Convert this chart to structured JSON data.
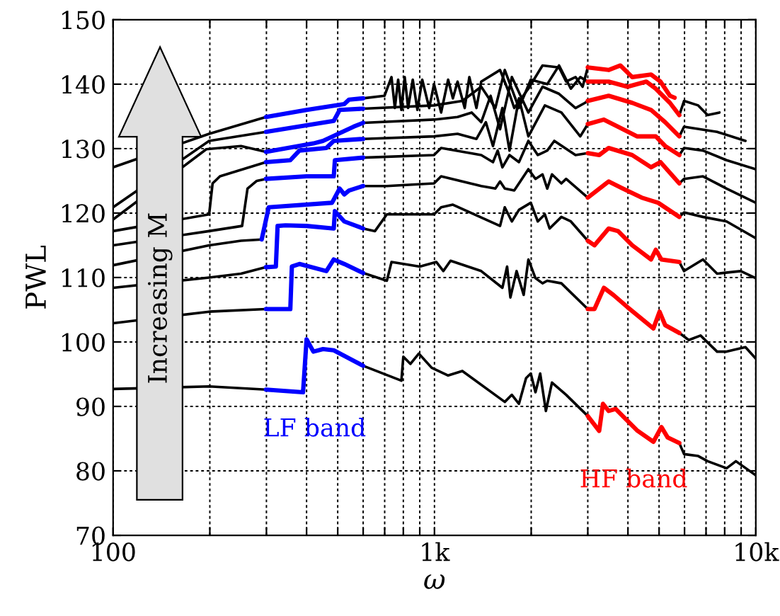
{
  "chart_data": {
    "type": "line",
    "xlabel": "ω",
    "ylabel": "PWL",
    "log": "x",
    "grid": true,
    "xlim": [
      100,
      10000
    ],
    "ylim": [
      70,
      150
    ],
    "xticks": [
      {
        "value": 100,
        "label": "100"
      },
      {
        "value": 200,
        "label": null
      },
      {
        "value": 300,
        "label": null
      },
      {
        "value": 400,
        "label": null
      },
      {
        "value": 500,
        "label": null
      },
      {
        "value": 600,
        "label": null
      },
      {
        "value": 700,
        "label": null
      },
      {
        "value": 800,
        "label": null
      },
      {
        "value": 900,
        "label": null
      },
      {
        "value": 1000,
        "label": "1k"
      },
      {
        "value": 2000,
        "label": null
      },
      {
        "value": 3000,
        "label": null
      },
      {
        "value": 4000,
        "label": null
      },
      {
        "value": 5000,
        "label": null
      },
      {
        "value": 6000,
        "label": null
      },
      {
        "value": 7000,
        "label": null
      },
      {
        "value": 8000,
        "label": null
      },
      {
        "value": 9000,
        "label": null
      },
      {
        "value": 10000,
        "label": "10k"
      }
    ],
    "yticks": [
      70,
      80,
      90,
      100,
      110,
      120,
      130,
      140,
      150
    ],
    "annotations": [
      "Increasing M"
    ],
    "series": [
      {
        "color": "#000000",
        "x": [
          100,
          199,
          299,
          450,
          600,
          789,
          800,
          842,
          894,
          980,
          1103,
          1221,
          1655,
          1741,
          1832,
          1928,
          1994,
          2062,
          2133,
          2222,
          2321,
          2569,
          3000,
          4000,
          5781,
          5980,
          6619,
          7080,
          8110,
          8670,
          10000
        ],
        "values": [
          92.7,
          93.1,
          92.6,
          null,
          96.3,
          94.0,
          97.7,
          96.6,
          98.2,
          96.0,
          94.8,
          95.5,
          90.7,
          91.8,
          90.4,
          94.4,
          95.1,
          92.2,
          95.1,
          89.3,
          93.7,
          91.8,
          88.5,
          null,
          84.3,
          82.6,
          82.3,
          81.5,
          80.4,
          81.5,
          79.3
        ]
      },
      {
        "name": "LF band",
        "color": "#0000ff",
        "x": [
          299,
          390,
          400,
          420,
          450,
          486,
          600
        ],
        "values": [
          92.6,
          92.2,
          100.4,
          98.5,
          98.9,
          98.7,
          96.3
        ]
      },
      {
        "name": "HF band",
        "color": "#ff0000",
        "x": [
          3000,
          3255,
          3344,
          3483,
          3664,
          3854,
          4266,
          4801,
          5084,
          5313,
          5781
        ],
        "values": [
          88.5,
          86.2,
          90.4,
          89.3,
          89.6,
          88.5,
          86.3,
          84.5,
          86.8,
          85.2,
          84.3
        ]
      },
      {
        "color": "#000000",
        "x": [
          100,
          199,
          299,
          450,
          600,
          711,
          735,
          900,
          1014,
          1066,
          1122,
          1398,
          1627,
          1683,
          1723,
          1801,
          1895,
          1960,
          2062,
          2169,
          2244,
          2483,
          3000,
          4000,
          5781,
          6186,
          6730,
          7577,
          8110,
          9284,
          10000
        ],
        "values": [
          102.9,
          104.7,
          105.1,
          null,
          110.7,
          109.5,
          112.4,
          111.7,
          112.4,
          111.0,
          112.6,
          111.0,
          108.4,
          111.7,
          106.9,
          111.0,
          107.3,
          112.8,
          109.9,
          109.1,
          109.5,
          109.1,
          105.1,
          null,
          101.4,
          100.3,
          101.0,
          98.5,
          98.5,
          99.2,
          97.4
        ]
      },
      {
        "color": "#0000ff",
        "x": [
          299,
          356,
          360,
          380,
          461,
          486,
          524,
          600
        ],
        "values": [
          105.1,
          105.1,
          111.7,
          112.1,
          111.0,
          112.8,
          112.1,
          110.7
        ]
      },
      {
        "color": "#ff0000",
        "x": [
          3000,
          3147,
          3367,
          3602,
          3987,
          4801,
          5016,
          5224,
          5781
        ],
        "values": [
          105.1,
          105.1,
          108.4,
          107.3,
          105.4,
          102.1,
          104.7,
          102.6,
          101.4
        ]
      },
      {
        "color": "#000000",
        "x": [
          100,
          199,
          250,
          299,
          450,
          600,
          653,
          711,
          997,
          1049,
          1141,
          1600,
          1655,
          1741,
          1832,
          1994,
          2097,
          2206,
          2282,
          2483,
          2657,
          3000,
          4000,
          5781,
          5980,
          6847,
          7577,
          8974,
          10000
        ],
        "values": [
          108.4,
          110.0,
          110.6,
          111.6,
          null,
          117.6,
          117.2,
          119.8,
          119.8,
          120.9,
          121.3,
          118.0,
          120.9,
          118.7,
          120.5,
          121.6,
          118.7,
          119.8,
          117.6,
          119.4,
          118.7,
          115.7,
          null,
          112.4,
          111.0,
          112.8,
          110.6,
          111.0,
          109.9
        ]
      },
      {
        "color": "#0000ff",
        "x": [
          299,
          321,
          325,
          344,
          400,
          486,
          490,
          524,
          600
        ],
        "values": [
          111.6,
          111.7,
          118.0,
          118.1,
          118.0,
          117.6,
          120.3,
          118.7,
          117.6
        ]
      },
      {
        "color": "#ff0000",
        "x": [
          3000,
          3147,
          3483,
          3727,
          4124,
          4721,
          4883,
          5084,
          5781
        ],
        "values": [
          115.7,
          115.0,
          117.6,
          117.2,
          115.0,
          112.8,
          114.3,
          112.8,
          112.4
        ]
      },
      {
        "color": "#000000",
        "x": [
          100,
          199,
          250,
          290,
          450,
          600,
          711,
          997,
          1049,
          1398,
          1547,
          1600,
          1655,
          1771,
          1960,
          2062,
          2169,
          2244,
          2321,
          2483,
          2569,
          3000,
          4000,
          5781,
          5980,
          6847,
          8110,
          10000
        ],
        "values": [
          111.9,
          115.0,
          115.7,
          115.9,
          null,
          124.2,
          124.2,
          124.6,
          125.7,
          124.2,
          123.8,
          124.9,
          123.8,
          123.5,
          126.8,
          125.3,
          126.0,
          123.8,
          126.0,
          124.6,
          125.3,
          122.4,
          null,
          119.4,
          120.1,
          119.4,
          118.7,
          116.1
        ]
      },
      {
        "color": "#0000ff",
        "x": [
          290,
          305,
          480,
          507,
          524,
          542,
          600
        ],
        "values": [
          115.9,
          120.9,
          121.6,
          123.8,
          122.9,
          123.5,
          124.2
        ]
      },
      {
        "color": "#ff0000",
        "x": [
          3000,
          3483,
          3854,
          4412,
          4966,
          5781
        ],
        "values": [
          122.4,
          124.9,
          123.8,
          122.4,
          121.6,
          119.4
        ]
      },
      {
        "color": "#000000",
        "x": [
          100,
          199,
          252,
          262,
          280,
          299,
          450,
          600,
          997,
          1049,
          1398,
          1521,
          1573,
          1627,
          1712,
          1832,
          1960,
          2097,
          2244,
          2360,
          2748,
          3000,
          4000,
          5781,
          5980,
          6847,
          8110,
          10000
        ],
        "values": [
          115.0,
          117.2,
          118.0,
          123.8,
          125.0,
          125.3,
          null,
          128.6,
          129.0,
          130.1,
          129.0,
          127.9,
          129.7,
          127.1,
          129.0,
          127.9,
          131.2,
          129.0,
          129.7,
          131.2,
          129.0,
          129.3,
          null,
          124.6,
          125.3,
          125.7,
          123.8,
          121.6
        ]
      },
      {
        "color": "#0000ff",
        "x": [
          299,
          400,
          486,
          490,
          600
        ],
        "values": [
          125.3,
          125.7,
          125.7,
          128.2,
          128.6
        ]
      },
      {
        "color": "#ff0000",
        "x": [
          3000,
          3255,
          3483,
          4124,
          4721,
          5050,
          5781
        ],
        "values": [
          129.3,
          129.0,
          130.1,
          129.0,
          127.1,
          127.9,
          124.6
        ]
      },
      {
        "color": "#000000",
        "x": [
          100,
          199,
          204,
          215,
          299,
          450,
          600,
          997,
          1180,
          1351,
          1445,
          1521,
          1627,
          1712,
          1832,
          1960,
          2206,
          2483,
          2843,
          3000,
          4000,
          5781,
          5980,
          6847,
          8110,
          10000
        ],
        "values": [
          117.2,
          119.8,
          124.6,
          125.7,
          127.9,
          null,
          131.5,
          131.9,
          132.3,
          131.5,
          134.1,
          130.4,
          136.3,
          129.7,
          137.8,
          131.9,
          136.7,
          135.6,
          131.9,
          133.8,
          null,
          129.0,
          130.1,
          129.7,
          128.2,
          126.8
        ]
      },
      {
        "color": "#0000ff",
        "x": [
          299,
          356,
          380,
          461,
          486,
          600
        ],
        "values": [
          127.9,
          128.2,
          129.7,
          130.1,
          131.2,
          131.5
        ]
      },
      {
        "color": "#ff0000",
        "x": [
          3000,
          3367,
          3727,
          4266,
          4883,
          5224,
          5781
        ],
        "values": [
          133.8,
          134.5,
          133.4,
          131.9,
          131.9,
          130.4,
          129.0
        ]
      },
      {
        "color": "#000000",
        "x": [
          100,
          195,
          250,
          299,
          450,
          600,
          997,
          1180,
          1306,
          1398,
          1495,
          1600,
          1741,
          1960,
          2169,
          2442,
          2748,
          2941,
          3000,
          4000,
          5781,
          5980,
          7577,
          9284
        ],
        "values": [
          119.0,
          129.9,
          130.4,
          129.5,
          null,
          134.0,
          134.5,
          134.9,
          135.6,
          134.1,
          138.2,
          133.0,
          141.1,
          135.6,
          139.6,
          138.5,
          136.3,
          137.1,
          137.4,
          null,
          131.9,
          133.4,
          132.6,
          131.2
        ]
      },
      {
        "color": "#0000ff",
        "x": [
          299,
          420,
          450,
          560,
          600
        ],
        "values": [
          129.5,
          130.8,
          131.2,
          133.4,
          134.0
        ]
      },
      {
        "color": "#ff0000",
        "x": [
          3000,
          3483,
          4124,
          4721,
          5224,
          5781
        ],
        "values": [
          137.4,
          138.2,
          137.1,
          136.0,
          134.1,
          131.9
        ]
      },
      {
        "color": "#000000",
        "x": [
          100,
          199,
          299,
          450,
          600,
          997,
          1221,
          1398,
          1547,
          1655,
          1832,
          1994,
          2244,
          2442,
          2657,
          2843,
          3000,
          4000,
          5781,
          5980,
          6619,
          7080,
          7707
        ],
        "values": [
          120.9,
          131.2,
          132.6,
          null,
          136.2,
          136.7,
          137.4,
          139.6,
          136.3,
          142.2,
          136.3,
          140.7,
          140.0,
          142.9,
          139.3,
          141.1,
          140.4,
          null,
          135.2,
          137.4,
          136.7,
          135.2,
          135.6
        ]
      },
      {
        "color": "#0000ff",
        "x": [
          299,
          486,
          507,
          600
        ],
        "values": [
          132.6,
          134.3,
          136.0,
          136.2
        ]
      },
      {
        "color": "#ff0000",
        "x": [
          3000,
          3483,
          3987,
          4563,
          4883,
          5404,
          5781
        ],
        "values": [
          140.4,
          140.4,
          139.6,
          140.4,
          139.3,
          137.1,
          135.2
        ]
      },
      {
        "color": "#000000",
        "x": [
          100,
          199,
          299,
          450,
          600,
          699,
          735,
          753,
          771,
          789,
          808,
          828,
          856,
          885,
          916,
          963,
          997,
          1049,
          1103,
          1141,
          1180,
          1242,
          1284,
          1351,
          1398,
          1600,
          1712,
          1771,
          1960,
          2169,
          2442,
          2569,
          2748,
          2891,
          3000
        ],
        "values": [
          127.1,
          132.3,
          134.9,
          null,
          137.8,
          138.2,
          141.1,
          136.3,
          140.7,
          136.0,
          141.1,
          136.3,
          140.7,
          136.0,
          140.7,
          136.3,
          140.0,
          135.6,
          140.7,
          137.8,
          140.4,
          136.3,
          141.1,
          136.3,
          140.4,
          142.2,
          138.5,
          136.3,
          139.3,
          142.9,
          142.6,
          140.4,
          141.1,
          139.6,
          142.6
        ]
      },
      {
        "color": "#0000ff",
        "x": [
          299,
          400,
          524,
          542,
          600
        ],
        "values": [
          134.9,
          136.0,
          136.9,
          137.6,
          137.8
        ]
      },
      {
        "color": "#ff0000",
        "x": [
          3000,
          3483,
          3790,
          4124,
          4721,
          5050,
          5404,
          5589
        ],
        "values": [
          142.6,
          142.2,
          142.9,
          141.1,
          141.5,
          140.4,
          138.2,
          137.9
        ]
      }
    ]
  }
}
